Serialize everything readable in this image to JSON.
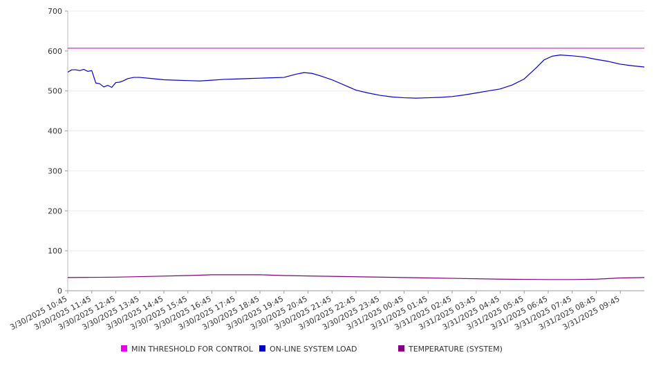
{
  "chart_data": {
    "type": "line",
    "title": "",
    "xlabel": "",
    "ylabel": "",
    "ylim": [
      0,
      700
    ],
    "y_ticks": [
      0,
      100,
      200,
      300,
      400,
      500,
      600,
      700
    ],
    "grid": true,
    "legend_placement": "bottom",
    "x_tick_labels": [
      "3/30/2025 10:45",
      "3/30/2025 11:45",
      "3/30/2025 12:45",
      "3/30/2025 13:45",
      "3/30/2025 14:45",
      "3/30/2025 15:45",
      "3/30/2025 16:45",
      "3/30/2025 17:45",
      "3/30/2025 18:45",
      "3/30/2025 19:45",
      "3/30/2025 20:45",
      "3/30/2025 21:45",
      "3/30/2025 22:45",
      "3/30/2025 23:45",
      "3/31/2025 00:45",
      "3/31/2025 01:45",
      "3/31/2025 02:45",
      "3/31/2025 03:45",
      "3/31/2025 04:45",
      "3/31/2025 05:45",
      "3/31/2025 06:45",
      "3/31/2025 07:45",
      "3/31/2025 08:45",
      "3/31/2025 09:45"
    ],
    "x_range": [
      "3/30/2025 10:45",
      "3/31/2025 10:45"
    ],
    "series": [
      {
        "name": "MIN THRESHOLD FOR CONTROL",
        "color": "#ee00ee",
        "points": [
          [
            "3/30/2025 10:45",
            607
          ],
          [
            "3/31/2025 10:45",
            607
          ]
        ]
      },
      {
        "name": "ON-LINE SYSTEM LOAD",
        "color": "#0000cc",
        "points": [
          [
            "3/30/2025 10:45",
            547
          ],
          [
            "3/30/2025 10:55",
            553
          ],
          [
            "3/30/2025 11:05",
            553
          ],
          [
            "3/30/2025 11:15",
            551
          ],
          [
            "3/30/2025 11:25",
            554
          ],
          [
            "3/30/2025 11:35",
            549
          ],
          [
            "3/30/2025 11:45",
            551
          ],
          [
            "3/30/2025 11:55",
            520
          ],
          [
            "3/30/2025 12:05",
            518
          ],
          [
            "3/30/2025 12:15",
            510
          ],
          [
            "3/30/2025 12:25",
            514
          ],
          [
            "3/30/2025 12:35",
            509
          ],
          [
            "3/30/2025 12:45",
            521
          ],
          [
            "3/30/2025 12:55",
            522
          ],
          [
            "3/30/2025 13:05",
            526
          ],
          [
            "3/30/2025 13:15",
            531
          ],
          [
            "3/30/2025 13:30",
            534
          ],
          [
            "3/30/2025 13:45",
            534
          ],
          [
            "3/30/2025 14:15",
            531
          ],
          [
            "3/30/2025 14:45",
            528
          ],
          [
            "3/30/2025 15:15",
            527
          ],
          [
            "3/30/2025 15:45",
            526
          ],
          [
            "3/30/2025 16:15",
            525
          ],
          [
            "3/30/2025 16:45",
            527
          ],
          [
            "3/30/2025 17:15",
            529
          ],
          [
            "3/30/2025 17:45",
            530
          ],
          [
            "3/30/2025 18:15",
            531
          ],
          [
            "3/30/2025 18:45",
            532
          ],
          [
            "3/30/2025 19:15",
            533
          ],
          [
            "3/30/2025 19:45",
            534
          ],
          [
            "3/30/2025 20:15",
            542
          ],
          [
            "3/30/2025 20:35",
            546
          ],
          [
            "3/30/2025 20:55",
            544
          ],
          [
            "3/30/2025 21:15",
            538
          ],
          [
            "3/30/2025 21:45",
            528
          ],
          [
            "3/30/2025 22:15",
            515
          ],
          [
            "3/30/2025 22:45",
            502
          ],
          [
            "3/30/2025 23:15",
            495
          ],
          [
            "3/30/2025 23:45",
            489
          ],
          [
            "3/31/2025 00:15",
            485
          ],
          [
            "3/31/2025 00:45",
            483
          ],
          [
            "3/31/2025 01:15",
            482
          ],
          [
            "3/31/2025 01:45",
            483
          ],
          [
            "3/31/2025 02:15",
            484
          ],
          [
            "3/31/2025 02:45",
            486
          ],
          [
            "3/31/2025 03:15",
            490
          ],
          [
            "3/31/2025 03:45",
            495
          ],
          [
            "3/31/2025 04:15",
            500
          ],
          [
            "3/31/2025 04:45",
            505
          ],
          [
            "3/31/2025 05:15",
            515
          ],
          [
            "3/31/2025 05:45",
            530
          ],
          [
            "3/31/2025 06:15",
            558
          ],
          [
            "3/31/2025 06:35",
            578
          ],
          [
            "3/31/2025 06:55",
            587
          ],
          [
            "3/31/2025 07:15",
            590
          ],
          [
            "3/31/2025 07:45",
            588
          ],
          [
            "3/31/2025 08:15",
            585
          ],
          [
            "3/31/2025 08:45",
            579
          ],
          [
            "3/31/2025 09:15",
            574
          ],
          [
            "3/31/2025 09:45",
            567
          ],
          [
            "3/31/2025 10:15",
            563
          ],
          [
            "3/31/2025 10:45",
            560
          ]
        ]
      },
      {
        "name": "TEMPERATURE (SYSTEM)",
        "color": "#800080",
        "points": [
          [
            "3/30/2025 10:45",
            33
          ],
          [
            "3/30/2025 12:45",
            34
          ],
          [
            "3/30/2025 14:15",
            36
          ],
          [
            "3/30/2025 15:45",
            38
          ],
          [
            "3/30/2025 16:45",
            40
          ],
          [
            "3/30/2025 18:45",
            40
          ],
          [
            "3/30/2025 19:45",
            38
          ],
          [
            "3/30/2025 20:45",
            37
          ],
          [
            "3/30/2025 22:45",
            35
          ],
          [
            "3/31/2025 00:45",
            33
          ],
          [
            "3/31/2025 02:45",
            31
          ],
          [
            "3/31/2025 04:45",
            29
          ],
          [
            "3/31/2025 06:45",
            28
          ],
          [
            "3/31/2025 07:45",
            28
          ],
          [
            "3/31/2025 08:45",
            29
          ],
          [
            "3/31/2025 09:45",
            32
          ],
          [
            "3/31/2025 10:45",
            33
          ]
        ]
      }
    ]
  }
}
